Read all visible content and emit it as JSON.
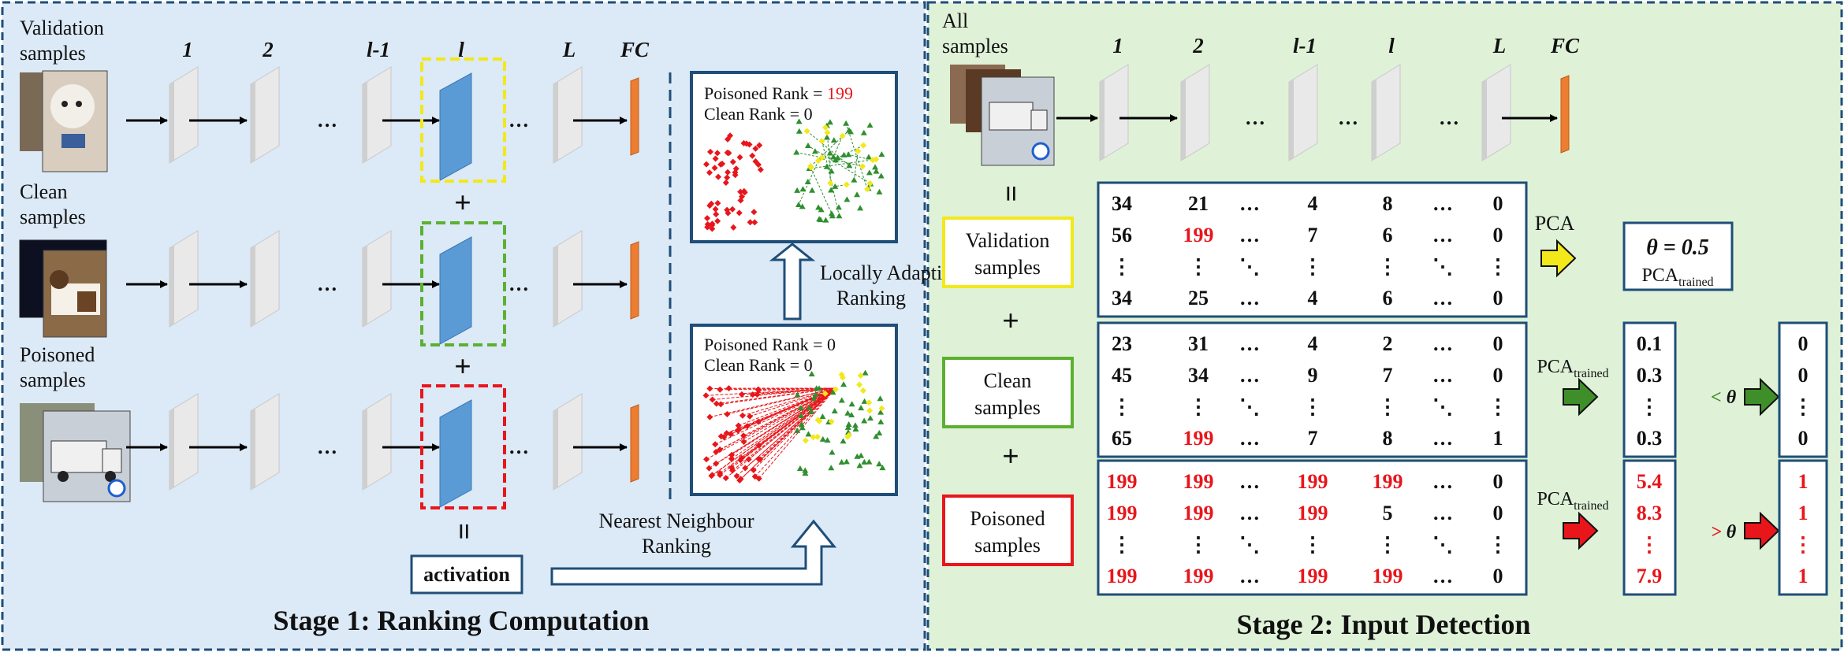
{
  "stage1": {
    "title": "Stage 1: Ranking Computation",
    "layer_labels": [
      "1",
      "2",
      "l-1",
      "l",
      "L",
      "FC"
    ],
    "ellipsis": "…",
    "row_labels": [
      [
        "Validation",
        "samples"
      ],
      [
        "Clean",
        "samples"
      ],
      [
        "Poisoned",
        "samples"
      ]
    ],
    "plus": "+",
    "equals": "=",
    "activation": "activation",
    "nn_ranking": [
      "Nearest Neighbour",
      "Ranking"
    ],
    "la_ranking": [
      "Locally Adaptive",
      "Ranking"
    ],
    "plot_top": {
      "poisoned_label": "Poisoned Rank = ",
      "poisoned_value": "199",
      "clean_label": "Clean Rank = 0"
    },
    "plot_bottom": {
      "poisoned_label": "Poisoned Rank = 0",
      "clean_label": "Clean Rank = 0"
    }
  },
  "stage2": {
    "title": "Stage 2: Input Detection",
    "all_samples": [
      "All",
      "samples"
    ],
    "layer_labels": [
      "1",
      "2",
      "l-1",
      "l",
      "L",
      "FC"
    ],
    "ellipsis": "…",
    "equals": "=",
    "plus": "+",
    "groups": [
      {
        "label": [
          "Validation",
          "samples"
        ],
        "color": "#f2e81a",
        "rows": [
          [
            "34",
            "21",
            "…",
            "4",
            "8",
            "…",
            "0"
          ],
          [
            "56",
            "199",
            "…",
            "7",
            "6",
            "…",
            "0"
          ],
          [
            "⋮",
            "⋮",
            "⋱",
            "⋮",
            "⋮",
            "⋱",
            "⋮"
          ],
          [
            "34",
            "25",
            "…",
            "4",
            "6",
            "…",
            "0"
          ]
        ],
        "red_cells": [
          [
            1,
            1
          ]
        ]
      },
      {
        "label": [
          "Clean",
          "samples"
        ],
        "color": "#5cb030",
        "rows": [
          [
            "23",
            "31",
            "…",
            "4",
            "2",
            "…",
            "0"
          ],
          [
            "45",
            "34",
            "…",
            "9",
            "7",
            "…",
            "0"
          ],
          [
            "⋮",
            "⋮",
            "⋱",
            "⋮",
            "⋮",
            "⋱",
            "⋮"
          ],
          [
            "65",
            "199",
            "…",
            "7",
            "8",
            "…",
            "1"
          ]
        ],
        "red_cells": [
          [
            3,
            1
          ]
        ]
      },
      {
        "label": [
          "Poisoned",
          "samples"
        ],
        "color": "#e8161b",
        "rows": [
          [
            "199",
            "199",
            "…",
            "199",
            "199",
            "…",
            "0"
          ],
          [
            "199",
            "199",
            "…",
            "199",
            "5",
            "…",
            "0"
          ],
          [
            "⋮",
            "⋮",
            "⋱",
            "⋮",
            "⋮",
            "⋱",
            "⋮"
          ],
          [
            "199",
            "199",
            "…",
            "199",
            "199",
            "…",
            "0"
          ]
        ],
        "red_cells": [
          [
            0,
            0
          ],
          [
            0,
            1
          ],
          [
            0,
            3
          ],
          [
            0,
            4
          ],
          [
            1,
            0
          ],
          [
            1,
            1
          ],
          [
            1,
            3
          ],
          [
            3,
            0
          ],
          [
            3,
            1
          ],
          [
            3,
            3
          ],
          [
            3,
            4
          ]
        ]
      }
    ],
    "pca_label": "PCA",
    "pca_trained_main": "PCA",
    "pca_trained_sub": "trained",
    "theta_eq": "θ = 0.5",
    "clean_scores": [
      "0.1",
      "0.3",
      "⋮",
      "0.3"
    ],
    "poisoned_scores": [
      "5.4",
      "8.3",
      "⋮",
      "7.9"
    ],
    "lt_theta": "< θ",
    "gt_theta": "> θ",
    "clean_out": [
      "0",
      "0",
      "⋮",
      "0"
    ],
    "poisoned_out": [
      "1",
      "1",
      "⋮",
      "1"
    ]
  },
  "colors": {
    "stage1_bg": "#dce9f6",
    "stage2_bg": "#dff2d8",
    "border": "#1f4e79",
    "yellow": "#f2e81a",
    "green": "#5cb030",
    "red": "#e8161b",
    "layer_blue": "#5b9bd5",
    "fc_orange": "#ed7d31"
  }
}
